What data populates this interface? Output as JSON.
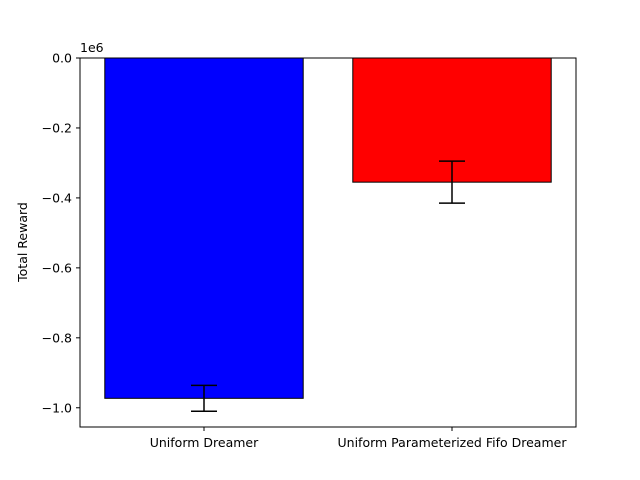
{
  "chart_data": {
    "type": "bar",
    "categories": [
      "Uniform Dreamer",
      "Uniform Parameterized Fifo Dreamer"
    ],
    "values": [
      -973000,
      -355000
    ],
    "errors": [
      37000,
      60000
    ],
    "colors": [
      "#0000ff",
      "#ff0000"
    ],
    "title": "",
    "xlabel": "",
    "ylabel": "Total Reward",
    "ylim": [
      -1055000,
      0
    ],
    "y_scale_label": "1e6",
    "yticks": [
      0,
      -200000,
      -400000,
      -600000,
      -800000,
      -1000000
    ],
    "ytick_labels": [
      "0.0",
      "−0.2",
      "−0.4",
      "−0.6",
      "−0.8",
      "−1.0"
    ],
    "grid": false,
    "legend": "none"
  }
}
